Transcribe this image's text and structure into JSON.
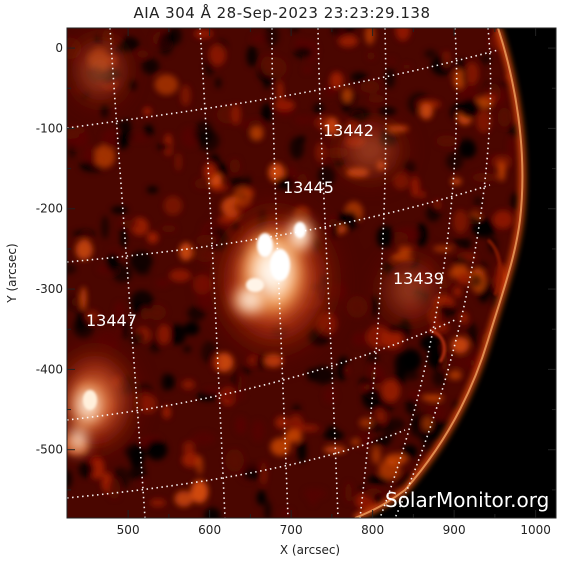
{
  "title": "AIA 304 Å 28-Sep-2023 23:23:29.138",
  "image": {
    "instrument": "AIA 304 Å",
    "colormap": [
      "#000000",
      "#5a0800",
      "#9b1c00",
      "#d24a08",
      "#f39a4a",
      "#ffe2c8",
      "#ffffff"
    ]
  },
  "axes": {
    "xlabel": "X (arcsec)",
    "ylabel": "Y (arcsec)",
    "xlim": [
      425,
      1025
    ],
    "ylim": [
      -585,
      25
    ],
    "xticks": [
      500,
      600,
      700,
      800,
      900,
      1000
    ],
    "yticks": [
      0,
      -100,
      -200,
      -300,
      -400,
      -500
    ]
  },
  "active_regions": [
    {
      "label": "13442"
    },
    {
      "label": "13445"
    },
    {
      "label": "13439"
    },
    {
      "label": "13447"
    }
  ],
  "credit": "SolarMonitor.org"
}
